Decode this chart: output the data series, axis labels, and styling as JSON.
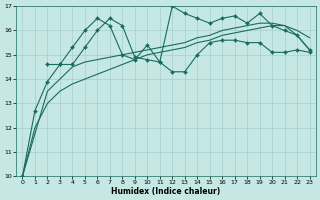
{
  "xlabel": "Humidex (Indice chaleur)",
  "background_color": "#c5e8e5",
  "grid_color": "#a8ceca",
  "line_color": "#1a6b60",
  "xlim": [
    -0.5,
    23.5
  ],
  "ylim": [
    10,
    17
  ],
  "yticks": [
    10,
    11,
    12,
    13,
    14,
    15,
    16,
    17
  ],
  "xticks": [
    0,
    1,
    2,
    3,
    4,
    5,
    6,
    7,
    8,
    9,
    10,
    11,
    12,
    13,
    14,
    15,
    16,
    17,
    18,
    19,
    20,
    21,
    22,
    23
  ],
  "series": [
    {
      "x": [
        0,
        1,
        2,
        3,
        4,
        5,
        6,
        7,
        8,
        9,
        10,
        11,
        12,
        13,
        14,
        15,
        16,
        17,
        18,
        19,
        20,
        21,
        22,
        23
      ],
      "y": [
        10.0,
        12.7,
        13.9,
        14.6,
        14.6,
        15.3,
        16.0,
        16.5,
        16.2,
        14.9,
        14.8,
        14.7,
        14.3,
        14.3,
        15.0,
        15.5,
        15.6,
        15.6,
        15.5,
        15.5,
        15.1,
        15.1,
        15.2,
        15.1
      ],
      "marker": "D",
      "markersize": 2.0,
      "linewidth": 0.8,
      "linestyle": "-"
    },
    {
      "x": [
        0,
        1,
        2,
        3,
        4,
        5,
        6,
        7,
        8,
        9,
        10,
        11,
        12,
        13,
        14,
        15,
        16,
        17,
        18,
        19,
        20,
        21,
        22,
        23
      ],
      "y": [
        10.0,
        12.0,
        13.0,
        13.5,
        13.8,
        14.0,
        14.2,
        14.4,
        14.6,
        14.8,
        15.0,
        15.1,
        15.2,
        15.3,
        15.5,
        15.6,
        15.8,
        15.9,
        16.0,
        16.1,
        16.2,
        16.2,
        16.0,
        15.7
      ],
      "marker": null,
      "markersize": 0,
      "linewidth": 0.8,
      "linestyle": "-"
    },
    {
      "x": [
        0,
        2,
        4,
        5,
        6,
        7,
        8,
        9,
        10,
        11,
        12,
        13,
        14,
        15,
        16,
        17,
        18,
        19,
        20,
        21,
        22,
        23
      ],
      "y": [
        10.0,
        13.5,
        14.5,
        14.7,
        14.8,
        14.9,
        15.0,
        15.1,
        15.2,
        15.3,
        15.4,
        15.5,
        15.7,
        15.8,
        16.0,
        16.1,
        16.2,
        16.3,
        16.3,
        16.2,
        15.8,
        15.2
      ],
      "marker": null,
      "markersize": 0,
      "linewidth": 0.8,
      "linestyle": "-"
    },
    {
      "x": [
        2,
        3,
        4,
        5,
        6,
        7,
        8,
        9,
        10,
        11,
        12,
        13,
        14,
        15,
        16,
        17,
        18,
        19,
        20,
        21,
        22,
        23
      ],
      "y": [
        14.6,
        14.6,
        15.3,
        16.0,
        16.5,
        16.2,
        15.0,
        14.8,
        15.4,
        14.7,
        17.0,
        16.7,
        16.5,
        16.3,
        16.5,
        16.6,
        16.3,
        16.7,
        16.2,
        16.0,
        15.8,
        15.2
      ],
      "marker": "D",
      "markersize": 2.0,
      "linewidth": 0.8,
      "linestyle": "-"
    }
  ]
}
